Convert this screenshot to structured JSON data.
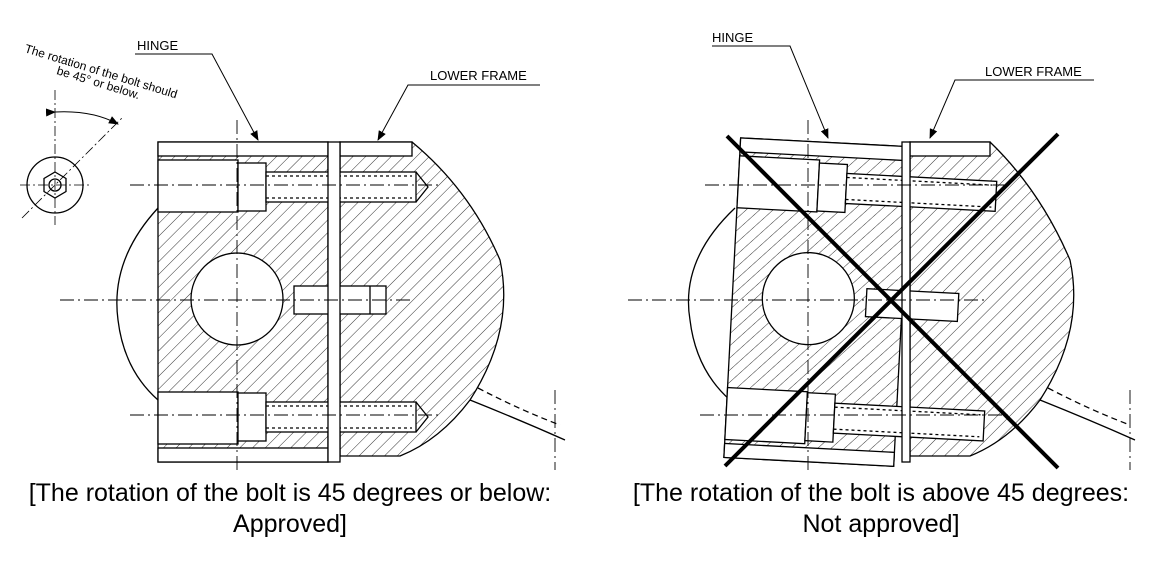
{
  "left_panel": {
    "hinge_label": "HINGE",
    "lower_frame_label": "LOWER FRAME",
    "note_line1": "The rotation of the bolt should",
    "note_line2": "be 45° or below.",
    "caption_line1": "[The rotation of the bolt is 45 degrees or below:",
    "caption_line2": "Approved]"
  },
  "right_panel": {
    "hinge_label": "HINGE",
    "lower_frame_label": "LOWER FRAME",
    "caption_line1": "[The rotation of the bolt is above 45 degrees:",
    "caption_line2": "Not approved]"
  },
  "colors": {
    "line": "#000000",
    "background": "#ffffff"
  }
}
